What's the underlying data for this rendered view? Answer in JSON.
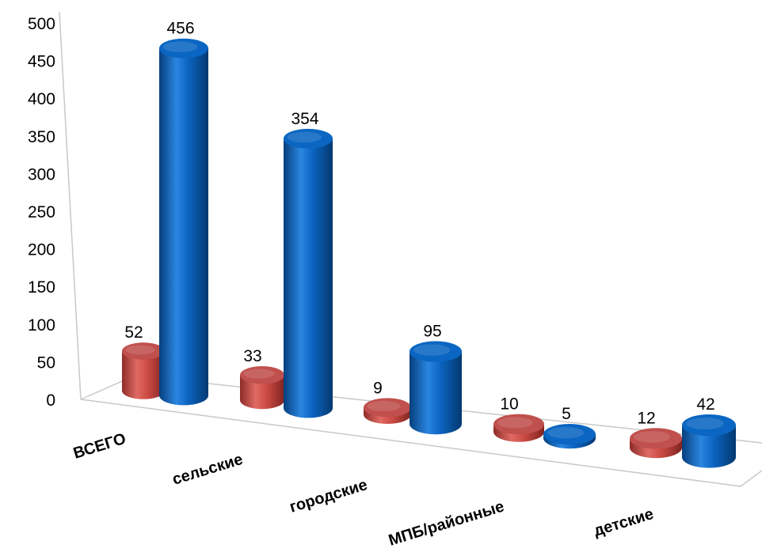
{
  "chart_data": {
    "type": "bar",
    "style": "3d-cylinder",
    "categories": [
      "ВСЕГО",
      "сельские",
      "городские",
      "МПБ/районные",
      "детские"
    ],
    "series": [
      {
        "color": "#c0504d",
        "values": [
          52,
          33,
          9,
          10,
          12
        ]
      },
      {
        "color": "#0a66c2",
        "values": [
          456,
          354,
          95,
          5,
          42
        ]
      }
    ],
    "yticks": [
      0,
      50,
      100,
      150,
      200,
      250,
      300,
      350,
      400,
      450,
      500
    ],
    "ylim": [
      0,
      500
    ],
    "grid": false,
    "legend": "none"
  }
}
